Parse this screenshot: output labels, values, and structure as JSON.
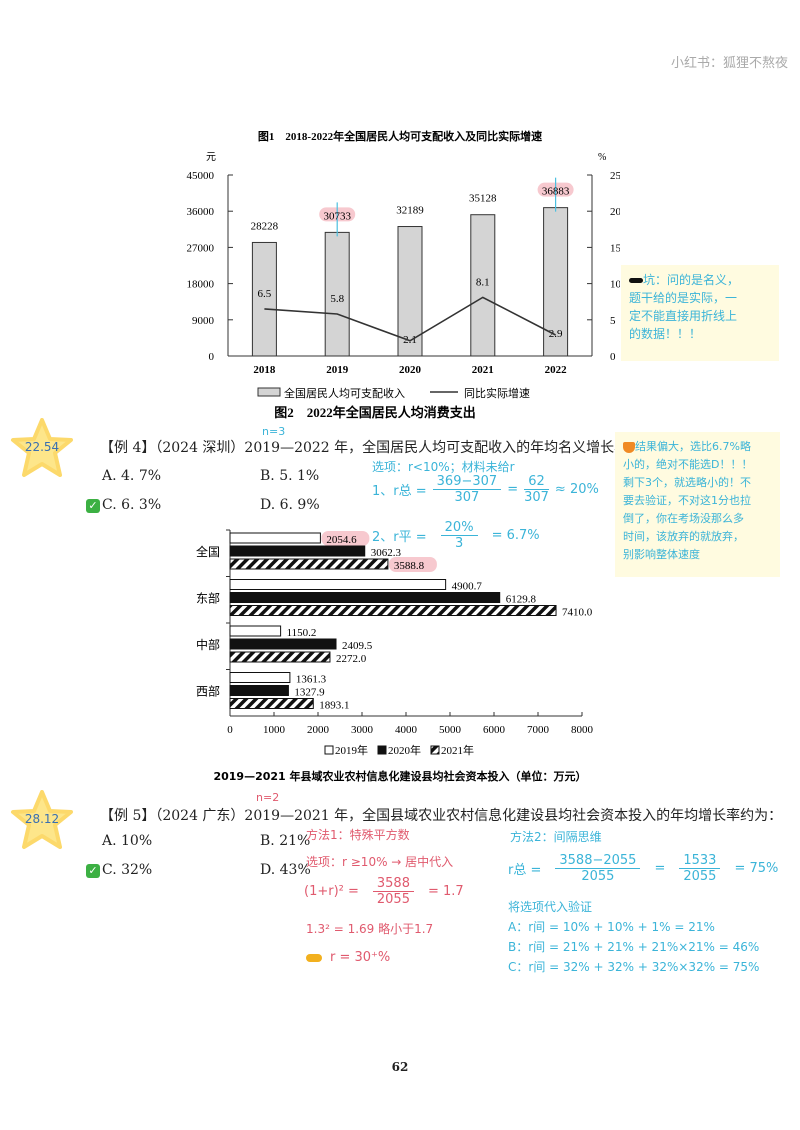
{
  "watermark": "小红书：狐狸不熬夜",
  "chart_data": [
    {
      "type": "bar+line",
      "title": "图1　2018-2022年全国居民人均可支配收入及同比实际增速",
      "categories": [
        "2018",
        "2019",
        "2020",
        "2021",
        "2022"
      ],
      "y_left_unit": "元",
      "y_right_unit": "%",
      "ylim_left": [
        0,
        45000
      ],
      "ylim_right": [
        0,
        25
      ],
      "yticks_left": [
        0,
        9000,
        18000,
        27000,
        36000,
        45000
      ],
      "yticks_right": [
        0,
        5,
        10,
        15,
        20,
        25
      ],
      "series": [
        {
          "name": "全国居民人均可支配收入",
          "kind": "bar",
          "values": [
            28228,
            30733,
            32189,
            35128,
            36883
          ],
          "color": "#d4d4d4"
        },
        {
          "name": "同比实际增速",
          "kind": "line",
          "axis": "right",
          "values": [
            6.5,
            5.8,
            2.1,
            8.1,
            2.9
          ],
          "color": "#333333"
        }
      ],
      "highlighted_values": [
        "30733",
        "36883"
      ],
      "subtitle_below": "图2　2022年全国居民人均消费支出"
    },
    {
      "type": "bar",
      "orientation": "horizontal",
      "title": "2019—2021 年县域农业农村信息化建设县均社会资本投入（单位：万元）",
      "categories": [
        "全国",
        "东部",
        "中部",
        "西部"
      ],
      "xlim": [
        0,
        8000
      ],
      "xticks": [
        0,
        1000,
        2000,
        3000,
        4000,
        5000,
        6000,
        7000,
        8000
      ],
      "series": [
        {
          "name": "2019年",
          "values": [
            2054.6,
            4900.7,
            1150.2,
            1361.3
          ],
          "fill": "white"
        },
        {
          "name": "2020年",
          "values": [
            3062.3,
            6129.8,
            2409.5,
            1327.9
          ],
          "fill": "black"
        },
        {
          "name": "2021年",
          "values": [
            3588.8,
            7410.0,
            2272.0,
            1893.1
          ],
          "fill": "hatched"
        }
      ],
      "labels": [
        [
          "2054.6",
          "3062.3",
          "3588.8"
        ],
        [
          "4900.7",
          "6129.8",
          "7410.0"
        ],
        [
          "1150.2",
          "2409.5",
          "2272.0"
        ],
        [
          "1361.3",
          "1327.9",
          "1893.1"
        ]
      ],
      "highlighted_values": [
        "2054.6",
        "3588.8"
      ]
    }
  ],
  "note1": {
    "icon": "ink-blot-icon",
    "text": [
      "坑：问的是名义，",
      "题干给的是实际，一",
      "定不能直接用折线上",
      "的数据！！！"
    ]
  },
  "ex4": {
    "badge": "22.54",
    "annot": "n=3",
    "question": "【例 4】（2024 深圳）2019—2022 年，全国居民人均可支配收入的年均名义增长率为：",
    "options": [
      "A. 4. 7%",
      "B. 5. 1%",
      "C. 6. 3%",
      "D. 6. 9%"
    ],
    "correct_mark": "✓",
    "work": {
      "line0": "选项：r<10%；材料未给r",
      "l1_label": "1、r总 =",
      "l1_num": "369−307",
      "l1_den": "307",
      "l1_eq": "=",
      "l1_num2": "62",
      "l1_den2": "307",
      "l1_res": "≈ 20%",
      "l2_label": "2、r平 =",
      "l2_num": "20%",
      "l2_den": "3",
      "l2_res": "= 6.7%"
    },
    "note": {
      "icon": "fox-icon",
      "text": [
        "结果偏大，选比6.7%略",
        "小的，绝对不能选D！！！",
        "剩下3个，就选略小的！不",
        "要去验证，不对这1分也拉",
        "倒了，你在考场没那么多",
        "时间，该放弃的就放弃，",
        "别影响整体速度"
      ]
    }
  },
  "ex5": {
    "badge": "28.12",
    "annot": "n=2",
    "question": "【例 5】（2024 广东）2019—2021 年，全国县域农业农村信息化建设县均社会资本投入的年均增长率约为：",
    "options": [
      "A. 10%",
      "B. 21%",
      "C. 32%",
      "D. 43%"
    ],
    "correct_mark": "✓",
    "m1": {
      "title": "方法1：特殊平方数",
      "l1": "选项：r ≥10% → 居中代入",
      "l2_label": "(1+r)² =",
      "l2_num": "3588",
      "l2_den": "2055",
      "l2_res": "= 1.7",
      "l3": "1.3² = 1.69 略小于1.7",
      "l4": "r = 30⁺%",
      "l4_icon": "pointing-hand-icon"
    },
    "m2": {
      "title": "方法2：间隔思维",
      "l1_label": "r总 =",
      "l1_num": "3588−2055",
      "l1_den": "2055",
      "l1_eq": "=",
      "l1_num2": "1533",
      "l1_den2": "2055",
      "l1_res": "= 75%",
      "l2": "将选项代入验证",
      "a": "A：r间 = 10% + 10% + 1% = 21%",
      "b": "B：r间 = 21% + 21% + 21%×21% = 46%",
      "c": "C：r间 = 32% + 32% + 32%×32% = 75%"
    }
  },
  "page_number": "62"
}
